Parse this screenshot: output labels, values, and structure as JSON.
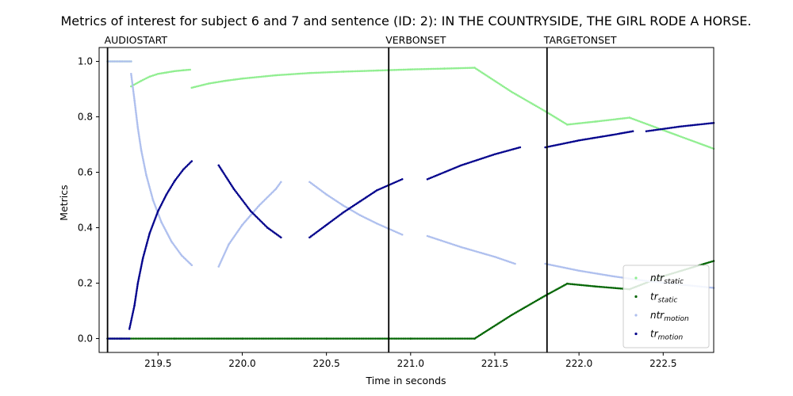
{
  "chart_data": {
    "type": "scatter",
    "title": "Metrics of interest for subject 6 and 7 and sentence (ID: 2): IN THE COUNTRYSIDE, THE GIRL RODE A HORSE.",
    "xlabel": "Time in seconds",
    "ylabel": "Metrics",
    "xlim": [
      219.15,
      222.8
    ],
    "ylim": [
      -0.05,
      1.05
    ],
    "xticks": [
      219.5,
      220.0,
      220.5,
      221.0,
      221.5,
      222.0,
      222.5
    ],
    "xtick_labels": [
      "219.5",
      "220.0",
      "220.5",
      "221.0",
      "221.5",
      "222.0",
      "222.5"
    ],
    "yticks": [
      0.0,
      0.2,
      0.4,
      0.6,
      0.8,
      1.0
    ],
    "ytick_labels": [
      "0.0",
      "0.2",
      "0.4",
      "0.6",
      "0.8",
      "1.0"
    ],
    "events": [
      {
        "label": "AUDIOSTART",
        "x": 219.2
      },
      {
        "label": "VERBONSET",
        "x": 220.87
      },
      {
        "label": "TARGETONSET",
        "x": 221.81
      }
    ],
    "legend_position": "lower-right",
    "series": [
      {
        "name": "ntr_static",
        "label_main": "ntr",
        "label_sub": "static",
        "color": "#90ee90",
        "segments": [
          {
            "x": [
              219.2,
              219.34
            ],
            "y": [
              1.0,
              1.0
            ]
          },
          {
            "x": [
              219.34,
              219.4,
              219.45,
              219.5,
              219.55,
              219.6,
              219.65,
              219.69
            ],
            "y": [
              0.91,
              0.93,
              0.945,
              0.955,
              0.96,
              0.965,
              0.968,
              0.97
            ]
          },
          {
            "x": [
              219.7,
              219.8,
              219.9,
              220.0,
              220.2,
              220.4,
              220.6,
              220.8,
              221.0,
              221.2,
              221.38
            ],
            "y": [
              0.905,
              0.92,
              0.93,
              0.938,
              0.95,
              0.958,
              0.963,
              0.967,
              0.971,
              0.974,
              0.977
            ]
          },
          {
            "x": [
              221.38,
              221.6,
              221.8,
              221.93
            ],
            "y": [
              0.977,
              0.89,
              0.82,
              0.772
            ]
          },
          {
            "x": [
              221.93,
              222.1,
              222.3
            ],
            "y": [
              0.772,
              0.783,
              0.797
            ]
          },
          {
            "x": [
              222.3,
              222.5,
              222.8
            ],
            "y": [
              0.797,
              0.752,
              0.685
            ]
          }
        ]
      },
      {
        "name": "tr_static",
        "label_main": "tr",
        "label_sub": "static",
        "color": "#006400",
        "segments": [
          {
            "x": [
              219.2,
              219.6,
              220.0,
              220.5,
              221.0,
              221.38
            ],
            "y": [
              0.0,
              0.0,
              0.0,
              0.0,
              0.0,
              0.0
            ]
          },
          {
            "x": [
              221.38,
              221.6,
              221.8,
              221.93
            ],
            "y": [
              0.0,
              0.085,
              0.155,
              0.198
            ]
          },
          {
            "x": [
              221.93,
              222.1,
              222.3
            ],
            "y": [
              0.198,
              0.188,
              0.178
            ]
          },
          {
            "x": [
              222.3,
              222.5,
              222.8
            ],
            "y": [
              0.178,
              0.225,
              0.28
            ]
          }
        ]
      },
      {
        "name": "ntr_motion",
        "label_main": "ntr",
        "label_sub": "motion",
        "color": "#aebfee",
        "segments": [
          {
            "x": [
              219.2,
              219.28,
              219.34
            ],
            "y": [
              1.0,
              1.0,
              1.0
            ]
          },
          {
            "x": [
              219.34,
              219.36,
              219.38,
              219.4,
              219.43,
              219.47,
              219.52,
              219.58,
              219.64,
              219.7
            ],
            "y": [
              0.955,
              0.86,
              0.76,
              0.68,
              0.59,
              0.5,
              0.42,
              0.35,
              0.3,
              0.265
            ]
          },
          {
            "x": [
              219.86,
              219.92,
              220.0,
              220.1,
              220.2,
              220.23
            ],
            "y": [
              0.26,
              0.34,
              0.41,
              0.48,
              0.54,
              0.565
            ]
          },
          {
            "x": [
              220.4,
              220.5,
              220.6,
              220.7,
              220.8,
              220.95
            ],
            "y": [
              0.565,
              0.52,
              0.48,
              0.445,
              0.415,
              0.375
            ]
          },
          {
            "x": [
              221.1,
              221.3,
              221.5,
              221.62
            ],
            "y": [
              0.37,
              0.33,
              0.295,
              0.27
            ]
          },
          {
            "x": [
              221.8,
              222.0,
              222.2,
              222.4,
              222.6,
              222.8
            ],
            "y": [
              0.27,
              0.245,
              0.225,
              0.208,
              0.195,
              0.183
            ]
          }
        ]
      },
      {
        "name": "tr_motion",
        "label_main": "tr",
        "label_sub": "motion",
        "color": "#00008b",
        "segments": [
          {
            "x": [
              219.2,
              219.28,
              219.33
            ],
            "y": [
              0.0,
              0.0,
              0.0
            ]
          },
          {
            "x": [
              219.33,
              219.36,
              219.38,
              219.41,
              219.45,
              219.5,
              219.55,
              219.6,
              219.65,
              219.7
            ],
            "y": [
              0.035,
              0.12,
              0.2,
              0.29,
              0.38,
              0.46,
              0.52,
              0.57,
              0.61,
              0.64
            ]
          },
          {
            "x": [
              219.86,
              219.95,
              220.05,
              220.15,
              220.23
            ],
            "y": [
              0.625,
              0.54,
              0.46,
              0.4,
              0.365
            ]
          },
          {
            "x": [
              220.4,
              220.5,
              220.6,
              220.7,
              220.8,
              220.95
            ],
            "y": [
              0.365,
              0.41,
              0.455,
              0.495,
              0.535,
              0.575
            ]
          },
          {
            "x": [
              221.1,
              221.3,
              221.5,
              221.65
            ],
            "y": [
              0.575,
              0.625,
              0.665,
              0.69
            ]
          },
          {
            "x": [
              221.8,
              222.0,
              222.2,
              222.32
            ],
            "y": [
              0.69,
              0.715,
              0.735,
              0.748
            ]
          },
          {
            "x": [
              222.4,
              222.6,
              222.8
            ],
            "y": [
              0.748,
              0.765,
              0.778
            ]
          }
        ]
      }
    ]
  }
}
